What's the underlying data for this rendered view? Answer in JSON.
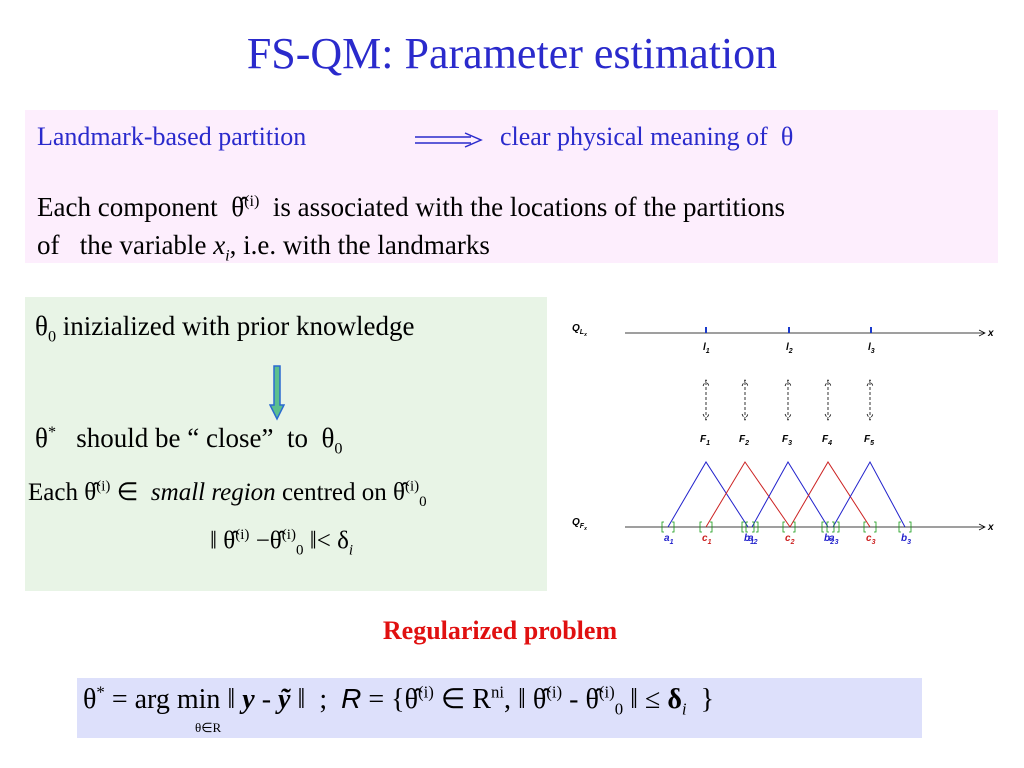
{
  "title": "FS-QM: Parameter estimation",
  "box1": {
    "left": "Landmark-based partition",
    "right": "clear physical meaning of",
    "symbol": "θ",
    "para": [
      "Each component",
      "θ̂",
      "(i)",
      "is associated with the locations of the partitions",
      "of   the variable",
      "x",
      "i",
      ", i.e. with the landmarks"
    ]
  },
  "box2": {
    "line1": [
      "θ",
      "0",
      "inizialized with prior knowledge"
    ],
    "line2": [
      "θ",
      "*",
      "should be “ close”  to",
      "θ",
      "0"
    ],
    "line3": [
      "Each",
      "θ̂",
      "(i)",
      "∈",
      "small region",
      "centred on",
      "θ̂",
      "(i)",
      "0"
    ],
    "line4": [
      "‖",
      "θ̂",
      "(i)",
      "−",
      "θ̂",
      "(i)",
      "0",
      "‖<",
      "δ",
      "i"
    ]
  },
  "subtitle": "Regularized problem",
  "formula": [
    "θ",
    "*",
    "= arg min ‖",
    "y",
    "-",
    "ỹ",
    "‖  ;",
    "R",
    "= {",
    "θ̂",
    "(i)",
    "∈ R",
    "ni",
    ", ‖",
    "θ̂",
    "(i)",
    "-",
    "θ̂",
    "(i)",
    "0",
    "‖ ≤",
    "δ",
    "i",
    "}"
  ],
  "formula_under": "θ∈R",
  "diagram": {
    "top_axis": [
      "Q",
      "L",
      "x"
    ],
    "bottom_axis": [
      "Q",
      "F",
      "x"
    ],
    "axis_end": "x",
    "landmarks": [
      [
        "l",
        "1"
      ],
      [
        "l",
        "2"
      ],
      [
        "l",
        "3"
      ]
    ],
    "functions": [
      [
        "F",
        "1"
      ],
      [
        "F",
        "2"
      ],
      [
        "F",
        "3"
      ],
      [
        "F",
        "4"
      ],
      [
        "F",
        "5"
      ]
    ],
    "points": [
      [
        "a",
        "1"
      ],
      [
        "c",
        "1"
      ],
      [
        "b",
        "1"
      ],
      [
        "a",
        "2"
      ],
      [
        "c",
        "2"
      ],
      [
        "b",
        "2"
      ],
      [
        "a",
        "3"
      ],
      [
        "c",
        "3"
      ],
      [
        "b",
        "3"
      ]
    ]
  }
}
